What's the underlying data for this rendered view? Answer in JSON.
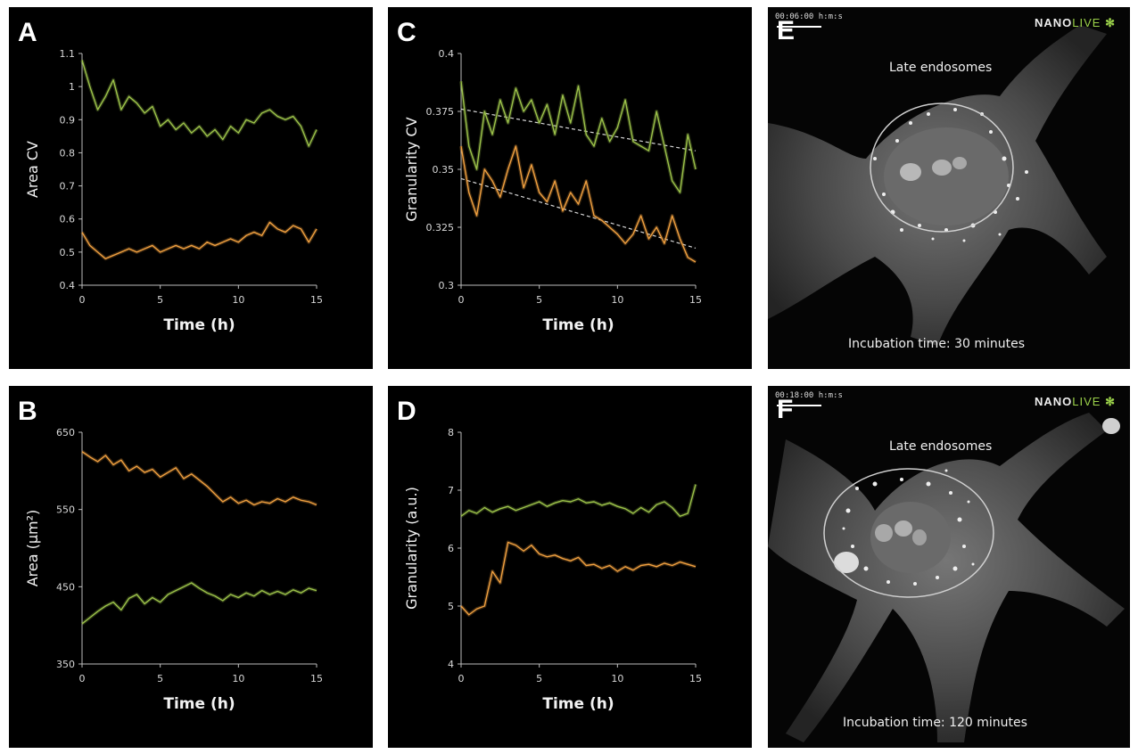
{
  "panels": {
    "A": {
      "letter": "A"
    },
    "B": {
      "letter": "B"
    },
    "C": {
      "letter": "C"
    },
    "D": {
      "letter": "D"
    },
    "E": {
      "letter": "E",
      "timestamp": "00:06:00 h:m:s",
      "logo_main": "NANO",
      "logo_accent": "LIVE",
      "label_top": "Late endosomes",
      "label_bottom": "Incubation time: 30 minutes"
    },
    "F": {
      "letter": "F",
      "timestamp": "00:18:00 h:m:s",
      "logo_main": "NANO",
      "logo_accent": "LIVE",
      "label_top": "Late endosomes",
      "label_bottom": "Incubation time: 120 minutes"
    }
  },
  "colors": {
    "green": "#9cc24a",
    "orange": "#f0a040",
    "dashed": "#d8d8d8"
  },
  "chart_data": [
    {
      "id": "A",
      "type": "line",
      "xlabel": "Time (h)",
      "ylabel": "Area CV",
      "xlim": [
        0,
        15
      ],
      "ylim": [
        0.4,
        1.1
      ],
      "xticks": [
        0,
        5,
        10,
        15
      ],
      "yticks": [
        0.4,
        0.5,
        0.6,
        0.7,
        0.8,
        0.9,
        1,
        1.1
      ],
      "ytick_labels": [
        "0.4",
        "0.5",
        "0.6",
        "0.7",
        "0.8",
        "0.9",
        "1",
        "1.1"
      ],
      "series": [
        {
          "color": "green",
          "x": [
            0,
            0.5,
            1,
            1.5,
            2,
            2.5,
            3,
            3.5,
            4,
            4.5,
            5,
            5.5,
            6,
            6.5,
            7,
            7.5,
            8,
            8.5,
            9,
            9.5,
            10,
            10.5,
            11,
            11.5,
            12,
            12.5,
            13,
            13.5,
            14,
            14.5,
            15
          ],
          "y": [
            1.08,
            1.0,
            0.93,
            0.97,
            1.02,
            0.93,
            0.97,
            0.95,
            0.92,
            0.94,
            0.88,
            0.9,
            0.87,
            0.89,
            0.86,
            0.88,
            0.85,
            0.87,
            0.84,
            0.88,
            0.86,
            0.9,
            0.89,
            0.92,
            0.93,
            0.91,
            0.9,
            0.91,
            0.88,
            0.82,
            0.87
          ]
        },
        {
          "color": "orange",
          "x": [
            0,
            0.5,
            1,
            1.5,
            2,
            2.5,
            3,
            3.5,
            4,
            4.5,
            5,
            5.5,
            6,
            6.5,
            7,
            7.5,
            8,
            8.5,
            9,
            9.5,
            10,
            10.5,
            11,
            11.5,
            12,
            12.5,
            13,
            13.5,
            14,
            14.5,
            15
          ],
          "y": [
            0.56,
            0.52,
            0.5,
            0.48,
            0.49,
            0.5,
            0.51,
            0.5,
            0.51,
            0.52,
            0.5,
            0.51,
            0.52,
            0.51,
            0.52,
            0.51,
            0.53,
            0.52,
            0.53,
            0.54,
            0.53,
            0.55,
            0.56,
            0.55,
            0.59,
            0.57,
            0.56,
            0.58,
            0.57,
            0.53,
            0.57
          ]
        }
      ]
    },
    {
      "id": "B",
      "type": "line",
      "xlabel": "Time (h)",
      "ylabel": "Area (µm²)",
      "xlim": [
        0,
        15
      ],
      "ylim": [
        350,
        650
      ],
      "xticks": [
        0,
        5,
        10,
        15
      ],
      "yticks": [
        350,
        450,
        550,
        650
      ],
      "ytick_labels": [
        "350",
        "450",
        "550",
        "650"
      ],
      "series": [
        {
          "color": "orange",
          "x": [
            0,
            0.5,
            1,
            1.5,
            2,
            2.5,
            3,
            3.5,
            4,
            4.5,
            5,
            5.5,
            6,
            6.5,
            7,
            7.5,
            8,
            8.5,
            9,
            9.5,
            10,
            10.5,
            11,
            11.5,
            12,
            12.5,
            13,
            13.5,
            14,
            14.5,
            15
          ],
          "y": [
            625,
            618,
            612,
            620,
            608,
            614,
            600,
            606,
            598,
            602,
            592,
            598,
            604,
            590,
            596,
            588,
            580,
            570,
            560,
            566,
            558,
            562,
            556,
            560,
            558,
            564,
            560,
            566,
            562,
            560,
            556
          ]
        },
        {
          "color": "green",
          "x": [
            0,
            0.5,
            1,
            1.5,
            2,
            2.5,
            3,
            3.5,
            4,
            4.5,
            5,
            5.5,
            6,
            6.5,
            7,
            7.5,
            8,
            8.5,
            9,
            9.5,
            10,
            10.5,
            11,
            11.5,
            12,
            12.5,
            13,
            13.5,
            14,
            14.5,
            15
          ],
          "y": [
            402,
            410,
            418,
            425,
            430,
            420,
            435,
            440,
            428,
            436,
            430,
            440,
            445,
            450,
            455,
            448,
            442,
            438,
            432,
            440,
            436,
            442,
            438,
            445,
            440,
            444,
            440,
            446,
            442,
            448,
            445
          ]
        }
      ]
    },
    {
      "id": "C",
      "type": "line",
      "xlabel": "Time (h)",
      "ylabel": "Granularity CV",
      "xlim": [
        0,
        15
      ],
      "ylim": [
        0.3,
        0.4
      ],
      "xticks": [
        0,
        5,
        10,
        15
      ],
      "yticks": [
        0.3,
        0.325,
        0.35,
        0.375,
        0.4
      ],
      "ytick_labels": [
        "0.3",
        "0.325",
        "0.35",
        "0.375",
        "0.4"
      ],
      "series": [
        {
          "color": "green",
          "x": [
            0,
            0.5,
            1,
            1.5,
            2,
            2.5,
            3,
            3.5,
            4,
            4.5,
            5,
            5.5,
            6,
            6.5,
            7,
            7.5,
            8,
            8.5,
            9,
            9.5,
            10,
            10.5,
            11,
            11.5,
            12,
            12.5,
            13,
            13.5,
            14,
            14.5,
            15
          ],
          "y": [
            0.388,
            0.36,
            0.35,
            0.375,
            0.365,
            0.38,
            0.37,
            0.385,
            0.375,
            0.38,
            0.37,
            0.378,
            0.365,
            0.382,
            0.37,
            0.386,
            0.365,
            0.36,
            0.372,
            0.362,
            0.368,
            0.38,
            0.362,
            0.36,
            0.358,
            0.375,
            0.36,
            0.345,
            0.34,
            0.365,
            0.35
          ]
        },
        {
          "color": "orange",
          "x": [
            0,
            0.5,
            1,
            1.5,
            2,
            2.5,
            3,
            3.5,
            4,
            4.5,
            5,
            5.5,
            6,
            6.5,
            7,
            7.5,
            8,
            8.5,
            9,
            9.5,
            10,
            10.5,
            11,
            11.5,
            12,
            12.5,
            13,
            13.5,
            14,
            14.5,
            15
          ],
          "y": [
            0.36,
            0.34,
            0.33,
            0.35,
            0.345,
            0.338,
            0.35,
            0.36,
            0.342,
            0.352,
            0.34,
            0.336,
            0.345,
            0.332,
            0.34,
            0.335,
            0.345,
            0.33,
            0.328,
            0.325,
            0.322,
            0.318,
            0.322,
            0.33,
            0.32,
            0.325,
            0.318,
            0.33,
            0.32,
            0.312,
            0.31
          ]
        }
      ],
      "trendlines": [
        {
          "color": "dashed",
          "x": [
            0,
            15
          ],
          "y": [
            0.376,
            0.358
          ]
        },
        {
          "color": "dashed",
          "x": [
            0,
            15
          ],
          "y": [
            0.346,
            0.316
          ]
        }
      ]
    },
    {
      "id": "D",
      "type": "line",
      "xlabel": "Time (h)",
      "ylabel": "Granularity (a.u.)",
      "xlim": [
        0,
        15
      ],
      "ylim": [
        4,
        8
      ],
      "xticks": [
        0,
        5,
        10,
        15
      ],
      "yticks": [
        4,
        5,
        6,
        7,
        8
      ],
      "ytick_labels": [
        "4",
        "5",
        "6",
        "7",
        "8"
      ],
      "series": [
        {
          "color": "green",
          "x": [
            0,
            0.5,
            1,
            1.5,
            2,
            2.5,
            3,
            3.5,
            4,
            4.5,
            5,
            5.5,
            6,
            6.5,
            7,
            7.5,
            8,
            8.5,
            9,
            9.5,
            10,
            10.5,
            11,
            11.5,
            12,
            12.5,
            13,
            13.5,
            14,
            14.5,
            15
          ],
          "y": [
            6.55,
            6.65,
            6.6,
            6.7,
            6.62,
            6.68,
            6.72,
            6.65,
            6.7,
            6.75,
            6.8,
            6.72,
            6.78,
            6.82,
            6.8,
            6.85,
            6.78,
            6.8,
            6.74,
            6.78,
            6.72,
            6.68,
            6.6,
            6.7,
            6.62,
            6.75,
            6.8,
            6.7,
            6.55,
            6.6,
            7.1
          ]
        },
        {
          "color": "orange",
          "x": [
            0,
            0.5,
            1,
            1.5,
            2,
            2.5,
            3,
            3.5,
            4,
            4.5,
            5,
            5.5,
            6,
            6.5,
            7,
            7.5,
            8,
            8.5,
            9,
            9.5,
            10,
            10.5,
            11,
            11.5,
            12,
            12.5,
            13,
            13.5,
            14,
            14.5,
            15
          ],
          "y": [
            5.0,
            4.85,
            4.95,
            5.0,
            5.6,
            5.4,
            6.1,
            6.05,
            5.95,
            6.05,
            5.9,
            5.85,
            5.88,
            5.82,
            5.78,
            5.84,
            5.7,
            5.72,
            5.65,
            5.7,
            5.6,
            5.68,
            5.62,
            5.7,
            5.72,
            5.68,
            5.74,
            5.7,
            5.76,
            5.72,
            5.68
          ]
        }
      ]
    }
  ]
}
